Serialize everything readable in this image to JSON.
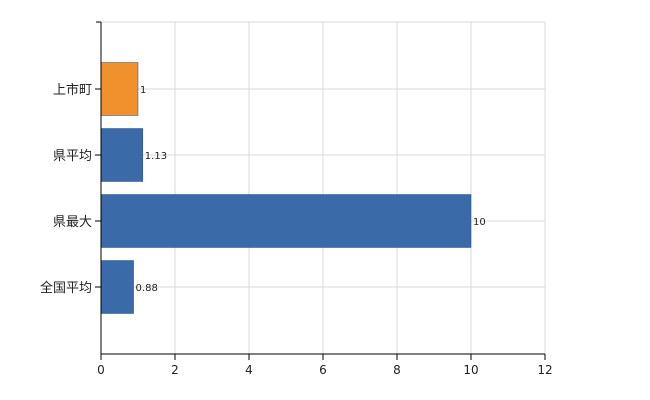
{
  "chart_data": {
    "type": "bar",
    "orientation": "horizontal",
    "categories": [
      "上市町",
      "県平均",
      "県最大",
      "全国平均"
    ],
    "values": [
      1,
      1.13,
      10,
      0.88
    ],
    "value_labels": [
      "1",
      "1.13",
      "10",
      "0.88"
    ],
    "bar_colors": [
      "#f0912d",
      "#3a6aa8",
      "#3a6aa8",
      "#3a6aa8"
    ],
    "xlim": [
      0,
      12
    ],
    "xticks": [
      0,
      2,
      4,
      6,
      8,
      10,
      12
    ],
    "xtick_labels": [
      "0",
      "2",
      "4",
      "6",
      "8",
      "10",
      "12"
    ],
    "grid": true,
    "title": "",
    "xlabel": "",
    "ylabel": ""
  }
}
